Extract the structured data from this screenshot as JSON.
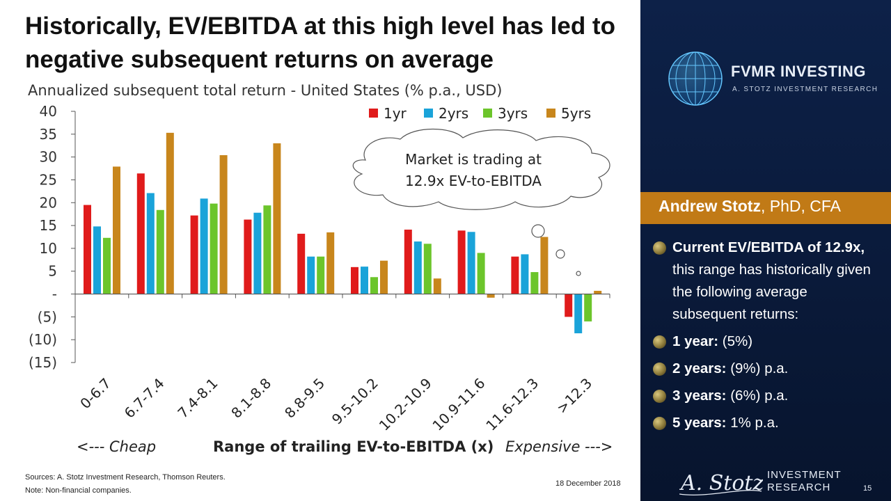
{
  "title": "Historically, EV/EBITDA at this high level has led to negative subsequent returns on average",
  "subtitle": "Annualized subsequent total return - United States (% p.a., USD)",
  "callout": [
    "Market is trading at",
    "12.9x EV-to-EBITDA"
  ],
  "x_footer": {
    "left": "<--- Cheap",
    "center": "Range of trailing EV-to-EBITDA (x)",
    "right": "Expensive --->"
  },
  "sources": "Sources: A. Stotz Investment Research, Thomson Reuters.",
  "note": "Note: Non-financial companies.",
  "date": "18 December 2018",
  "brand": {
    "name": "FVMR INVESTING",
    "tagline": "A. STOTZ INVESTMENT RESEARCH"
  },
  "presenter": {
    "name": "Andrew Stotz",
    "title": ", PhD, CFA"
  },
  "bullets": [
    {
      "bold": "Current EV/EBITDA of 12.9x,",
      "text": " this range has historically given the following average subsequent returns:"
    },
    {
      "bold": "1 year:",
      "text": " (5%)"
    },
    {
      "bold": "2 years:",
      "text": " (9%) p.a."
    },
    {
      "bold": "3 years:",
      "text": " (6%) p.a."
    },
    {
      "bold": "5 years:",
      "text": " 1% p.a."
    }
  ],
  "footer_brand": {
    "signature": "A. Stotz",
    "line1": "INVESTMENT",
    "line2": "RESEARCH"
  },
  "page_number": "15",
  "colors": {
    "1yr": "#e01b1b",
    "2yrs": "#1aa3d9",
    "3yrs": "#6cc52b",
    "5yrs": "#c8861c",
    "panel": "#0b1c3e",
    "accent": "#c17a16"
  },
  "chart_data": {
    "type": "bar",
    "categories": [
      "0-6.7",
      "6.7-7.4",
      "7.4-8.1",
      "8.1-8.8",
      "8.8-9.5",
      "9.5-10.2",
      "10.2-10.9",
      "10.9-11.6",
      "11.6-12.3",
      ">12.3"
    ],
    "series": [
      {
        "name": "1yr",
        "values": [
          19.5,
          26.4,
          17.2,
          16.3,
          13.2,
          5.9,
          14.1,
          13.9,
          8.2,
          -5.0
        ]
      },
      {
        "name": "2yrs",
        "values": [
          14.8,
          22.1,
          20.9,
          17.8,
          8.2,
          6.0,
          11.5,
          13.6,
          8.7,
          -8.6
        ]
      },
      {
        "name": "3yrs",
        "values": [
          12.3,
          18.4,
          19.8,
          19.4,
          8.2,
          3.7,
          11.0,
          9.0,
          4.8,
          -6.0
        ]
      },
      {
        "name": "5yrs",
        "values": [
          27.9,
          35.3,
          30.4,
          33.0,
          13.5,
          7.3,
          3.4,
          -0.8,
          12.5,
          0.7
        ]
      }
    ],
    "yticks": [
      "40",
      "35",
      "30",
      "25",
      "20",
      "15",
      "10",
      "5",
      "-",
      "(5)",
      "(10)",
      "(15)"
    ],
    "ylim": [
      -15,
      40
    ],
    "legend": "top-right"
  }
}
